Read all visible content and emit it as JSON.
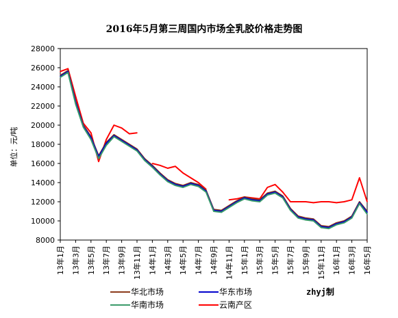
{
  "chart_data": {
    "type": "line",
    "title": "2016年5月第三周国内市场全乳胶价格走势图",
    "ylabel": "单位：元/吨",
    "xlabel": "",
    "ylim": [
      8000,
      28000
    ],
    "yticks": [
      8000,
      10000,
      12000,
      14000,
      16000,
      18000,
      20000,
      22000,
      24000,
      26000,
      28000
    ],
    "x_tick_labels": [
      "13年1月",
      "13年3月",
      "13年5月",
      "13年7月",
      "13年9月",
      "13年11月",
      "14年1月",
      "14年3月",
      "14年5月",
      "14年7月",
      "14年9月",
      "14年11月",
      "15年1月",
      "15年3月",
      "15年5月",
      "15年7月",
      "15年9月",
      "15年11月",
      "16年1月",
      "16年3月",
      "16年5月"
    ],
    "grid": false,
    "legend_position": "bottom",
    "credit": "zhyj制",
    "x": [
      "2013-01",
      "2013-02",
      "2013-03",
      "2013-04",
      "2013-05",
      "2013-06",
      "2013-07",
      "2013-08",
      "2013-09",
      "2013-10",
      "2013-11",
      "2013-12",
      "2014-01",
      "2014-02",
      "2014-03",
      "2014-04",
      "2014-05",
      "2014-06",
      "2014-07",
      "2014-08",
      "2014-09",
      "2014-10",
      "2014-11",
      "2014-12",
      "2015-01",
      "2015-02",
      "2015-03",
      "2015-04",
      "2015-05",
      "2015-06",
      "2015-07",
      "2015-08",
      "2015-09",
      "2015-10",
      "2015-11",
      "2015-12",
      "2016-01",
      "2016-02",
      "2016-03",
      "2016-04",
      "2016-05"
    ],
    "series": [
      {
        "name": "华北市场",
        "color": "#8B3A1A",
        "values": [
          25200,
          25700,
          22500,
          20000,
          18800,
          16800,
          18200,
          19000,
          18500,
          18000,
          17500,
          16500,
          15800,
          15000,
          14300,
          13900,
          13700,
          14000,
          13800,
          13200,
          11200,
          11100,
          11600,
          12100,
          12500,
          12300,
          12200,
          12900,
          13100,
          12600,
          11300,
          10500,
          10300,
          10200,
          9500,
          9400,
          9800,
          10000,
          10500,
          12000,
          11000
        ]
      },
      {
        "name": "华东市场",
        "color": "#0000CC",
        "values": [
          25100,
          25600,
          22400,
          19900,
          18700,
          16700,
          18100,
          18900,
          18400,
          17900,
          17400,
          16400,
          15700,
          14900,
          14200,
          13800,
          13600,
          13900,
          13700,
          13100,
          11100,
          11000,
          11500,
          12000,
          12400,
          12200,
          12100,
          12800,
          13000,
          12500,
          11200,
          10400,
          10200,
          10100,
          9400,
          9300,
          9700,
          9900,
          10400,
          11900,
          10900
        ]
      },
      {
        "name": "华南市场",
        "color": "#3A9A6A",
        "values": [
          25000,
          25500,
          22200,
          19800,
          18500,
          16500,
          17900,
          18800,
          18300,
          17800,
          17300,
          16300,
          15600,
          14800,
          14100,
          13700,
          13500,
          13800,
          13600,
          13000,
          11000,
          10900,
          11400,
          11900,
          12300,
          12100,
          12000,
          12700,
          12900,
          12400,
          11100,
          10300,
          10100,
          10000,
          9300,
          9200,
          9600,
          9800,
          10300,
          11800,
          10700
        ]
      },
      {
        "name": "云南产区",
        "color": "#FF0000",
        "values": [
          25600,
          25900,
          23000,
          20200,
          19200,
          16200,
          18500,
          20000,
          19700,
          19100,
          19200,
          null,
          16000,
          15800,
          15500,
          15700,
          15000,
          14500,
          14000,
          13300,
          null,
          null,
          12200,
          12300,
          12500,
          12400,
          12300,
          13500,
          13800,
          13000,
          12000,
          12000,
          12000,
          11900,
          12000,
          12000,
          11900,
          12000,
          12200,
          14500,
          12000
        ]
      }
    ]
  }
}
